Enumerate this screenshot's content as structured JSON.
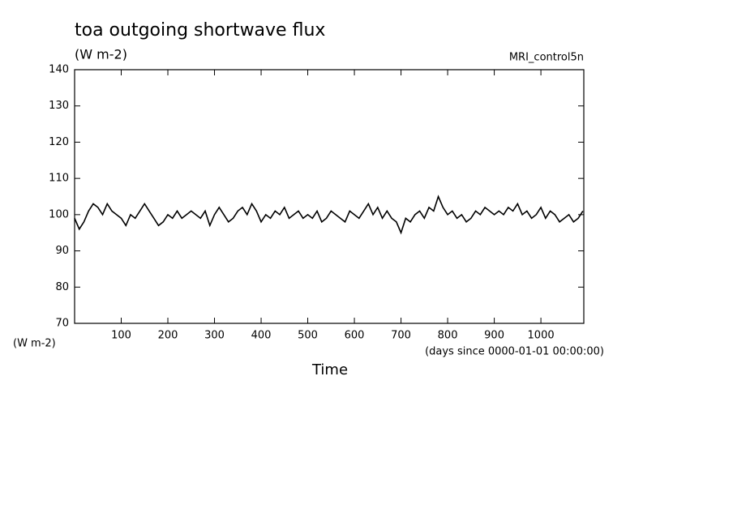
{
  "chart_data": {
    "type": "line",
    "title": "toa outgoing shortwave flux",
    "subtitle": "(W m-2)",
    "dataset": "MRI_control5n",
    "y_units": "(W m-2)",
    "x_units": "(days since 0000-01-01 00:00:00)",
    "x_label": "Time",
    "xlim": [
      0,
      1092
    ],
    "ylim": [
      70,
      140
    ],
    "xticks": [
      100,
      200,
      300,
      400,
      500,
      600,
      700,
      800,
      900,
      1000
    ],
    "yticks": [
      70,
      80,
      90,
      100,
      110,
      120,
      130,
      140
    ],
    "color": "#000000",
    "x": [
      0,
      10,
      20,
      30,
      40,
      50,
      60,
      70,
      80,
      90,
      100,
      110,
      120,
      130,
      140,
      150,
      160,
      170,
      180,
      190,
      200,
      210,
      220,
      230,
      240,
      250,
      260,
      270,
      280,
      290,
      300,
      310,
      320,
      330,
      340,
      350,
      360,
      370,
      380,
      390,
      400,
      410,
      420,
      430,
      440,
      450,
      460,
      470,
      480,
      490,
      500,
      510,
      520,
      530,
      540,
      550,
      560,
      570,
      580,
      590,
      600,
      610,
      620,
      630,
      640,
      650,
      660,
      670,
      680,
      690,
      700,
      710,
      720,
      730,
      740,
      750,
      760,
      770,
      780,
      790,
      800,
      810,
      820,
      830,
      840,
      850,
      860,
      870,
      880,
      890,
      900,
      910,
      920,
      930,
      940,
      950,
      960,
      970,
      980,
      990,
      1000,
      1010,
      1020,
      1030,
      1040,
      1050,
      1060,
      1070,
      1080,
      1090
    ],
    "values": [
      99,
      96,
      98,
      101,
      103,
      102,
      100,
      103,
      101,
      100,
      99,
      97,
      100,
      99,
      101,
      103,
      101,
      99,
      97,
      98,
      100,
      99,
      101,
      99,
      100,
      101,
      100,
      99,
      101,
      97,
      100,
      102,
      100,
      98,
      99,
      101,
      102,
      100,
      103,
      101,
      98,
      100,
      99,
      101,
      100,
      102,
      99,
      100,
      101,
      99,
      100,
      99,
      101,
      98,
      99,
      101,
      100,
      99,
      98,
      101,
      100,
      99,
      101,
      103,
      100,
      102,
      99,
      101,
      99,
      98,
      95,
      99,
      98,
      100,
      101,
      99,
      102,
      101,
      105,
      102,
      100,
      101,
      99,
      100,
      98,
      99,
      101,
      100,
      102,
      101,
      100,
      101,
      100,
      102,
      101,
      103,
      100,
      101,
      99,
      100,
      102,
      99,
      101,
      100,
      98,
      99,
      100,
      98,
      99,
      101
    ]
  }
}
